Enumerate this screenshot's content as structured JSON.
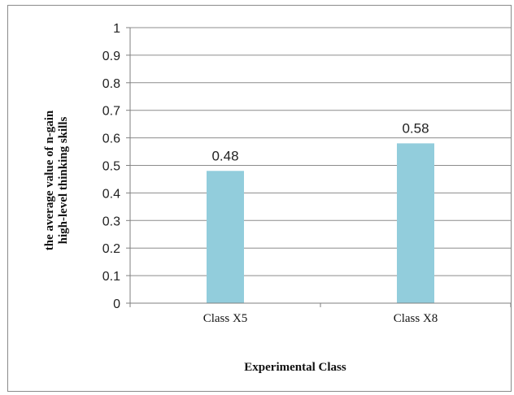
{
  "chart_data": {
    "type": "bar",
    "title": "",
    "categories": [
      "Class X5",
      "Class X8"
    ],
    "values": [
      0.48,
      0.58
    ],
    "data_labels": [
      "0.48",
      "0.58"
    ],
    "xlabel": "Experimental Class",
    "ylabel_lines": [
      "the average value of n-gain",
      "high-level thinking skills"
    ],
    "ylim": [
      0,
      1
    ],
    "yticks": [
      "0",
      "0.1",
      "0.2",
      "0.3",
      "0.4",
      "0.5",
      "0.6",
      "0.7",
      "0.8",
      "0.9",
      "1"
    ],
    "grid": true,
    "legend": "none",
    "colors": {
      "bar": "#92cddc",
      "grid": "#8c8c8c",
      "axis": "#7f7f7f",
      "frame": "#8a8a8a"
    }
  }
}
